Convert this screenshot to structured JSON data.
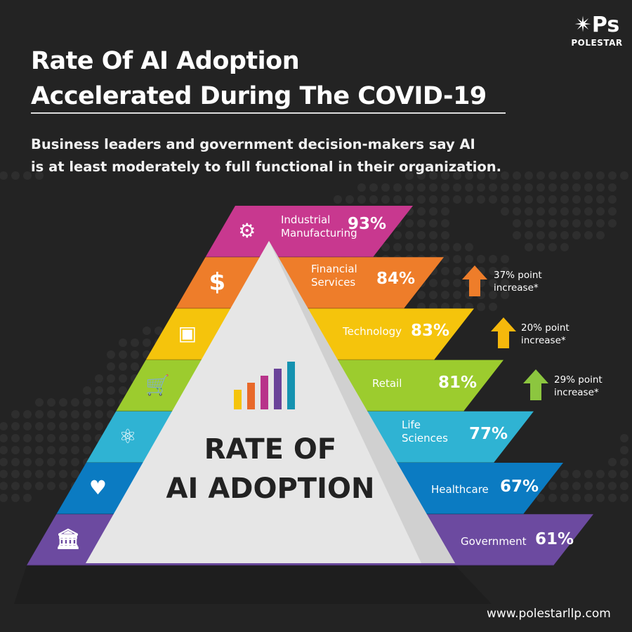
{
  "logo": {
    "mark": "Ps",
    "name": "POLESTAR",
    "icon": "star-icon"
  },
  "title": {
    "line1": "Rate Of AI Adoption",
    "line2": "Accelerated During The COVID-19"
  },
  "subtitle": {
    "line1": "Business leaders and government decision-makers say AI",
    "line2": "is at least moderately to full functional in their organization."
  },
  "pyramid": {
    "center_title_line1": "RATE OF",
    "center_title_line2": "AI ADOPTION",
    "tiers": [
      {
        "label1": "Industrial",
        "label2": "Manufacturing",
        "value": "93%",
        "color": "#c8388f",
        "icon": "gear-icon"
      },
      {
        "label1": "Financial",
        "label2": "Services",
        "value": "84%",
        "color": "#ee7d2a",
        "icon": "dollar-icon"
      },
      {
        "label1": "Technology",
        "label2": "",
        "value": "83%",
        "color": "#f5c40c",
        "icon": "circuit-chip-icon"
      },
      {
        "label1": "Retail",
        "label2": "",
        "value": "81%",
        "color": "#9ccc2e",
        "icon": "shopping-cart-icon"
      },
      {
        "label1": "Life",
        "label2": "Sciences",
        "value": "77%",
        "color": "#2fb3d3",
        "icon": "atom-icon"
      },
      {
        "label1": "Healthcare",
        "label2": "",
        "value": "67%",
        "color": "#0b7bc2",
        "icon": "heart-pulse-icon"
      },
      {
        "label1": "Government",
        "label2": "",
        "value": "61%",
        "color": "#6c4aa0",
        "icon": "government-building-icon"
      }
    ]
  },
  "increases": [
    {
      "line1": "37% point",
      "line2": "increase*",
      "color": "#ee7d2a",
      "icon": "arrow-up-icon"
    },
    {
      "line1": "20% point",
      "line2": "increase*",
      "color": "#f5b80c",
      "icon": "arrow-up-icon"
    },
    {
      "line1": "29% point",
      "line2": "increase*",
      "color": "#8cc63f",
      "icon": "arrow-up-icon"
    }
  ],
  "footer": {
    "url": "www.polestarllp.com"
  }
}
